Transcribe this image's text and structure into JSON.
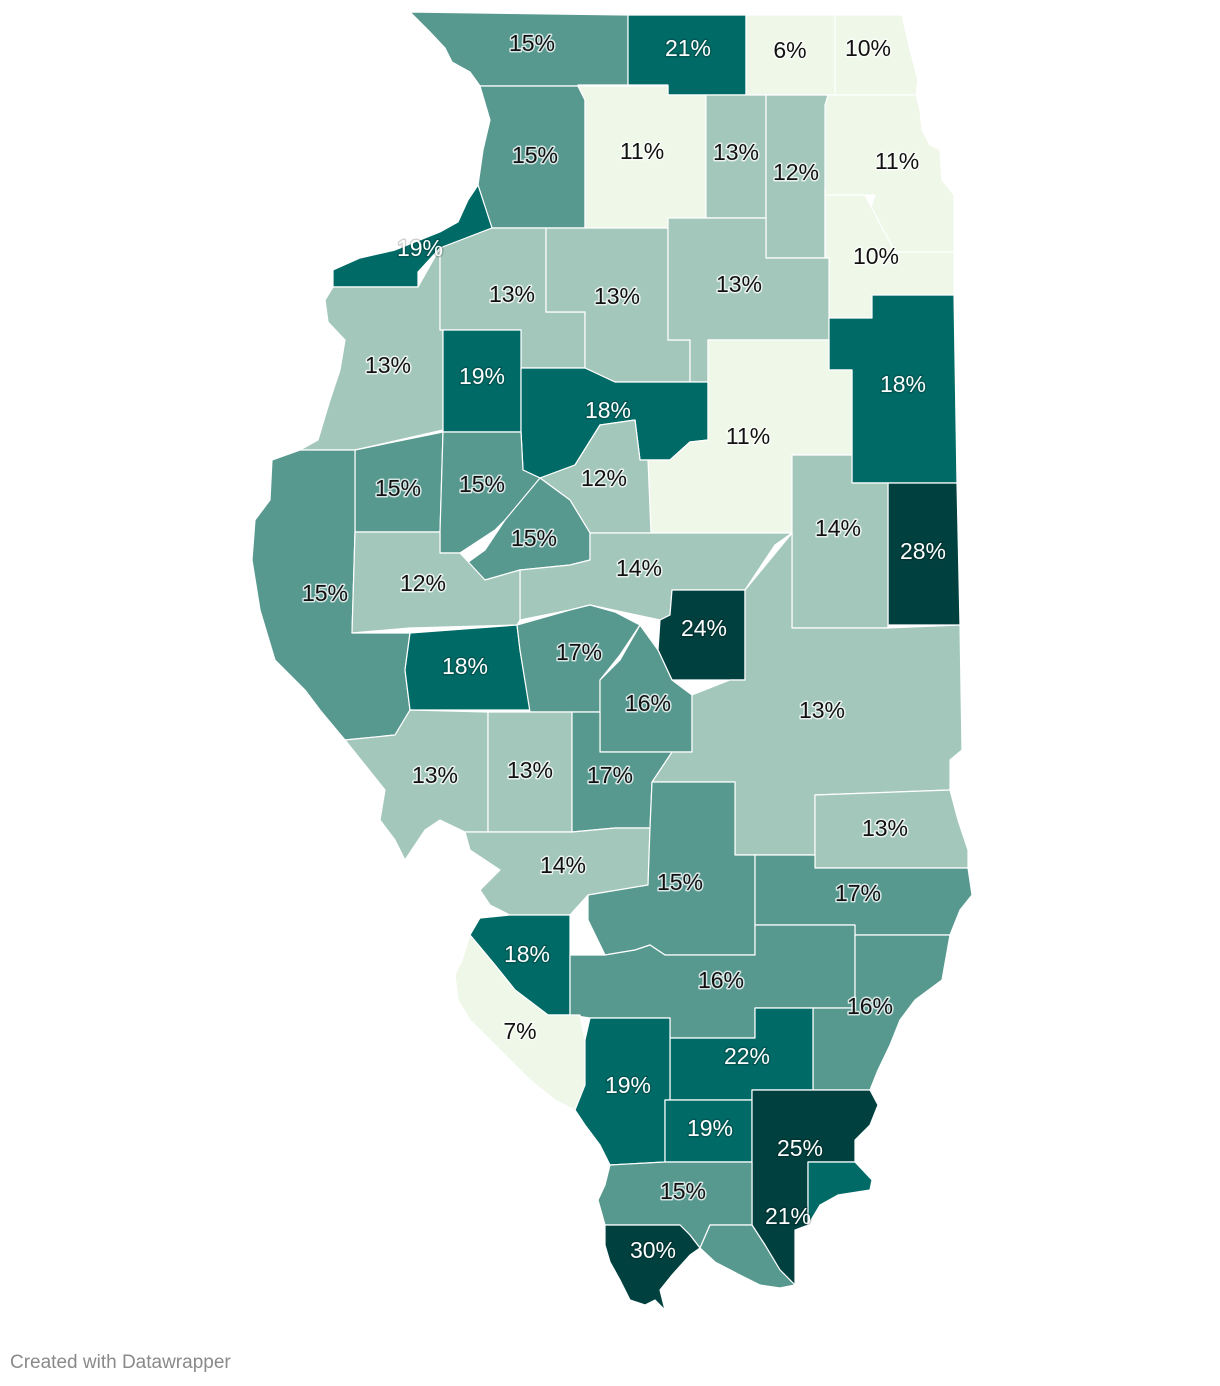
{
  "credit": "Created with Datawrapper",
  "colors": {
    "scale": [
      "#eef7e8",
      "#a3c7bb",
      "#57988f",
      "#006b66",
      "#00413f"
    ],
    "stroke": "#ffffff",
    "label_dark": "#111111",
    "label_light": "#ffffff"
  },
  "map_data": {
    "type": "choropleth",
    "region": "Illinois counties",
    "values": [
      {
        "label": "15%",
        "value": 15
      },
      {
        "label": "21%",
        "value": 21
      },
      {
        "label": "6%",
        "value": 6
      },
      {
        "label": "10%",
        "value": 10
      },
      {
        "label": "15%",
        "value": 15
      },
      {
        "label": "11%",
        "value": 11
      },
      {
        "label": "13%",
        "value": 13
      },
      {
        "label": "12%",
        "value": 12
      },
      {
        "label": "11%",
        "value": 11
      },
      {
        "label": "19%",
        "value": 19
      },
      {
        "label": "10%",
        "value": 10
      },
      {
        "label": "13%",
        "value": 13
      },
      {
        "label": "13%",
        "value": 13
      },
      {
        "label": "13%",
        "value": 13
      },
      {
        "label": "13%",
        "value": 13
      },
      {
        "label": "19%",
        "value": 19
      },
      {
        "label": "18%",
        "value": 18
      },
      {
        "label": "18%",
        "value": 18
      },
      {
        "label": "11%",
        "value": 11
      },
      {
        "label": "15%",
        "value": 15
      },
      {
        "label": "15%",
        "value": 15
      },
      {
        "label": "12%",
        "value": 12
      },
      {
        "label": "15%",
        "value": 15
      },
      {
        "label": "14%",
        "value": 14
      },
      {
        "label": "28%",
        "value": 28
      },
      {
        "label": "15%",
        "value": 15
      },
      {
        "label": "12%",
        "value": 12
      },
      {
        "label": "14%",
        "value": 14
      },
      {
        "label": "24%",
        "value": 24
      },
      {
        "label": "18%",
        "value": 18
      },
      {
        "label": "17%",
        "value": 17
      },
      {
        "label": "16%",
        "value": 16
      },
      {
        "label": "13%",
        "value": 13
      },
      {
        "label": "13%",
        "value": 13
      },
      {
        "label": "13%",
        "value": 13
      },
      {
        "label": "17%",
        "value": 17
      },
      {
        "label": "13%",
        "value": 13
      },
      {
        "label": "14%",
        "value": 14
      },
      {
        "label": "15%",
        "value": 15
      },
      {
        "label": "17%",
        "value": 17
      },
      {
        "label": "18%",
        "value": 18
      },
      {
        "label": "16%",
        "value": 16
      },
      {
        "label": "16%",
        "value": 16
      },
      {
        "label": "7%",
        "value": 7
      },
      {
        "label": "22%",
        "value": 22
      },
      {
        "label": "19%",
        "value": 19
      },
      {
        "label": "19%",
        "value": 19
      },
      {
        "label": "25%",
        "value": 25
      },
      {
        "label": "15%",
        "value": 15
      },
      {
        "label": "21%",
        "value": 21
      },
      {
        "label": "30%",
        "value": 30
      }
    ]
  }
}
